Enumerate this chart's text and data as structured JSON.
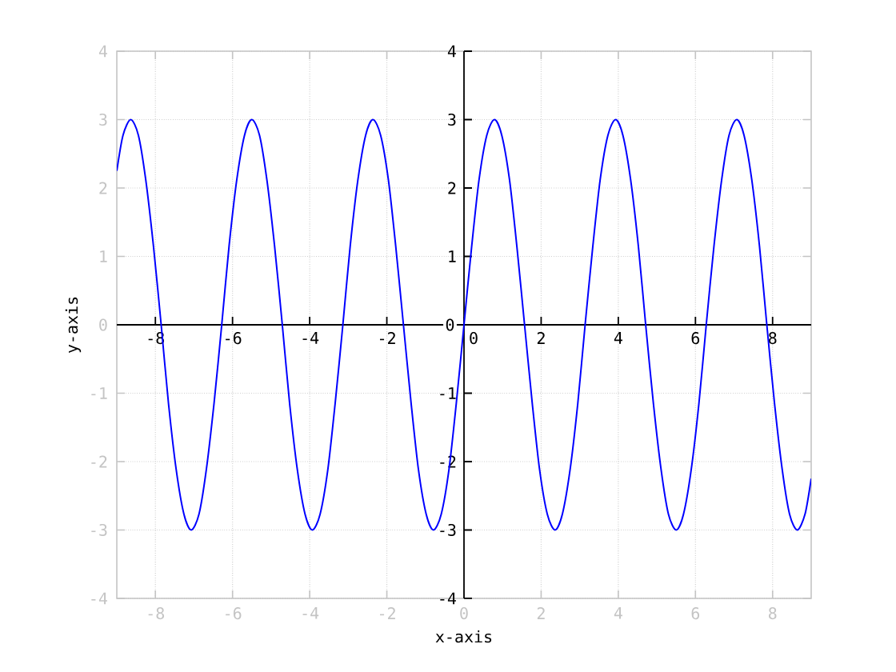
{
  "chart_data": {
    "type": "line",
    "xlabel": "x-axis",
    "ylabel": "y-axis",
    "x": [
      -9,
      -8.84,
      -8.64,
      -8.44,
      -8.25,
      -8.05,
      -7.85,
      -7.66,
      -7.46,
      -7.26,
      -7.07,
      -6.87,
      -6.68,
      -6.48,
      -6.28,
      -6.09,
      -5.89,
      -5.69,
      -5.5,
      -5.3,
      -5.11,
      -4.91,
      -4.71,
      -4.52,
      -4.32,
      -4.12,
      -3.93,
      -3.73,
      -3.53,
      -3.34,
      -3.14,
      -2.95,
      -2.75,
      -2.55,
      -2.36,
      -2.16,
      -1.96,
      -1.77,
      -1.57,
      -1.37,
      -1.18,
      -0.98,
      -0.79,
      -0.59,
      -0.39,
      -0.2,
      0,
      0.2,
      0.39,
      0.59,
      0.79,
      0.98,
      1.18,
      1.37,
      1.57,
      1.77,
      1.96,
      2.16,
      2.36,
      2.55,
      2.75,
      2.95,
      3.14,
      3.34,
      3.53,
      3.73,
      3.93,
      4.12,
      4.32,
      4.52,
      4.71,
      4.91,
      5.11,
      5.3,
      5.5,
      5.69,
      5.89,
      6.09,
      6.28,
      6.48,
      6.68,
      6.87,
      7.07,
      7.26,
      7.46,
      7.66,
      7.85,
      8.05,
      8.25,
      8.44,
      8.64,
      8.84,
      9
    ],
    "series": [
      {
        "color": "#0000ff",
        "values": [
          2.25,
          2.77,
          3,
          2.77,
          2.12,
          1.15,
          0,
          -1.15,
          -2.12,
          -2.77,
          -3,
          -2.77,
          -2.12,
          -1.15,
          0,
          1.15,
          2.12,
          2.77,
          3,
          2.77,
          2.12,
          1.15,
          0,
          -1.15,
          -2.12,
          -2.77,
          -3,
          -2.77,
          -2.12,
          -1.15,
          0,
          1.15,
          2.12,
          2.77,
          3,
          2.77,
          2.12,
          1.15,
          0,
          -1.15,
          -2.12,
          -2.77,
          -3,
          -2.77,
          -2.12,
          -1.15,
          0,
          1.15,
          2.12,
          2.77,
          3,
          2.77,
          2.12,
          1.15,
          0,
          -1.15,
          -2.12,
          -2.77,
          -3,
          -2.77,
          -2.12,
          -1.15,
          0,
          1.15,
          2.12,
          2.77,
          3,
          2.77,
          2.12,
          1.15,
          0,
          -1.15,
          -2.12,
          -2.77,
          -3,
          -2.77,
          -2.12,
          -1.15,
          0,
          1.15,
          2.12,
          2.77,
          3,
          2.77,
          2.12,
          1.15,
          0,
          -1.15,
          -2.12,
          -2.77,
          -3,
          -2.77,
          -2.25
        ]
      }
    ],
    "xlim": [
      -9,
      9
    ],
    "ylim": [
      -4,
      4
    ],
    "xticks": [
      -8,
      -6,
      -4,
      -2,
      0,
      2,
      4,
      6,
      8
    ],
    "yticks": [
      -4,
      -3,
      -2,
      -1,
      0,
      1,
      2,
      3,
      4
    ],
    "x2lim": [
      -9,
      9
    ],
    "y2lim": [
      -4,
      4
    ],
    "x2ticks": [
      -8,
      -6,
      -4,
      -2,
      0,
      2,
      4,
      6,
      8
    ],
    "y2ticks": [
      -4,
      -3,
      -2,
      -1,
      0,
      1,
      2,
      3,
      4
    ],
    "grid": true,
    "marker": "none",
    "line_style": "solid"
  }
}
